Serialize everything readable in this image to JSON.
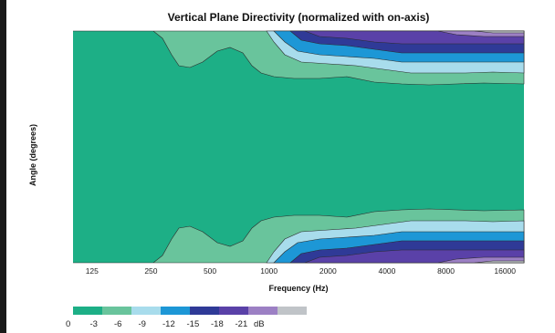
{
  "chart_data": {
    "type": "contour",
    "title": "Vertical Plane Directivity (normalized with on-axis)",
    "xlabel": "Frequency (Hz)",
    "ylabel": "Angle (degrees)",
    "x_scale": "log",
    "xlim": [
      100,
      20000
    ],
    "x_ticks": [
      125,
      250,
      500,
      1000,
      2000,
      4000,
      8000,
      16000
    ],
    "x_tick_labels": [
      "125",
      "250",
      "500",
      "1000",
      "2000",
      "4000",
      "8000",
      "16000"
    ],
    "contour_levels_db": [
      0,
      -3,
      -6,
      -9,
      -12,
      -15,
      -18,
      -21
    ],
    "legend_labels": [
      "0",
      "-3",
      "-6",
      "-9",
      "-12",
      "-15",
      "-18",
      "-21"
    ],
    "legend_unit": "dB",
    "colors": [
      "#1daf86",
      "#69c49c",
      "#a8dcec",
      "#1d97d6",
      "#2f3a97",
      "#5a41a8",
      "#9c80c4",
      "#c0c4c8"
    ],
    "background_color": "#ffffff"
  }
}
